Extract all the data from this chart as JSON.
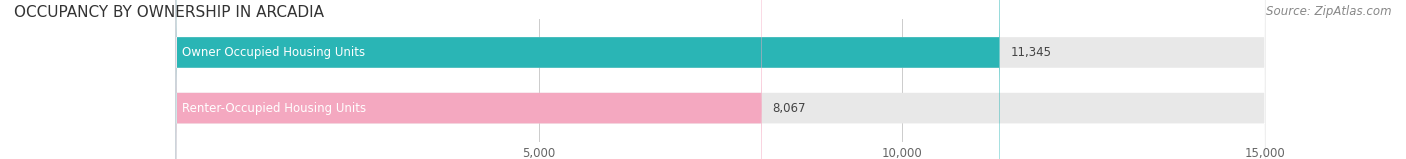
{
  "title": "OCCUPANCY BY OWNERSHIP IN ARCADIA",
  "source_text": "Source: ZipAtlas.com",
  "categories": [
    "Owner Occupied Housing Units",
    "Renter-Occupied Housing Units"
  ],
  "values": [
    11345,
    8067
  ],
  "bar_colors": [
    "#2ab5b5",
    "#f4a8c0"
  ],
  "label_colors": [
    "#2ab5b5",
    "#f4a8c0"
  ],
  "track_color": "#e8e8e8",
  "xlim": [
    0,
    15000
  ],
  "xticks": [
    0,
    5000,
    10000,
    15000
  ],
  "xtick_labels": [
    "",
    "5,000",
    "10,000",
    "15,000"
  ],
  "bar_height": 0.55,
  "title_fontsize": 11,
  "source_fontsize": 8.5,
  "label_fontsize": 8.5,
  "value_fontsize": 8.5,
  "tick_fontsize": 8.5,
  "background_color": "#ffffff"
}
